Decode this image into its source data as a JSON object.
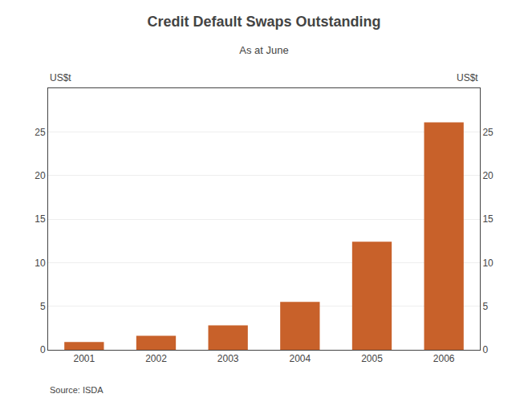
{
  "chart_data": {
    "type": "bar",
    "title": "Credit Default Swaps Outstanding",
    "subtitle": "As at June",
    "categories": [
      "2001",
      "2002",
      "2003",
      "2004",
      "2005",
      "2006"
    ],
    "values": [
      0.9,
      1.6,
      2.8,
      5.5,
      12.4,
      26.1
    ],
    "color": "#C8612A",
    "ylabel": "US$t",
    "y2label": "US$t",
    "ylim": [
      0,
      30
    ],
    "yticks": [
      0,
      5,
      10,
      15,
      20,
      25
    ],
    "y2lim": [
      0,
      30
    ],
    "y2ticks": [
      0,
      5,
      10,
      15,
      20,
      25
    ],
    "grid": true,
    "source": "Source: ISDA"
  }
}
